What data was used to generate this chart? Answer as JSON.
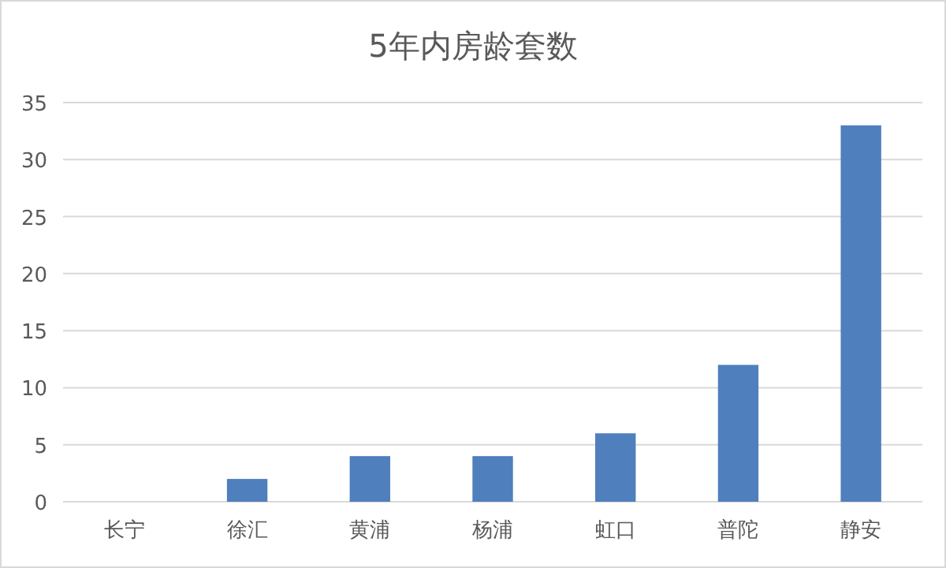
{
  "chart_data": {
    "type": "bar",
    "title": "5年内房龄套数",
    "categories": [
      "长宁",
      "徐汇",
      "黄浦",
      "杨浦",
      "虹口",
      "普陀",
      "静安"
    ],
    "values": [
      0,
      2,
      4,
      4,
      6,
      12,
      33
    ],
    "color": "#4f7fbd",
    "ylim": [
      0,
      35
    ],
    "yticks": [
      0,
      5,
      10,
      15,
      20,
      25,
      30,
      35
    ],
    "grid": "y"
  }
}
